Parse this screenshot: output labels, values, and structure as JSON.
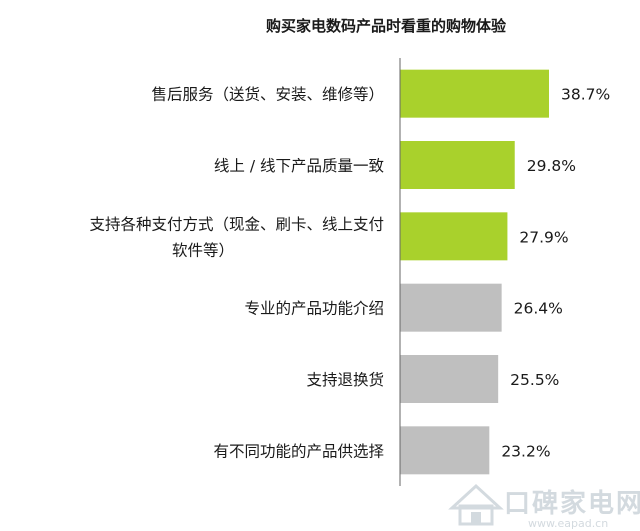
{
  "chart_data": {
    "type": "bar",
    "orientation": "horizontal",
    "title": "购买家电数码产品时看重的购物体验",
    "xlabel": "",
    "ylabel": "",
    "xlim": [
      0,
      40
    ],
    "grid": false,
    "legend": "none",
    "categories": [
      [
        "售后服务（送货、安装、维修等）"
      ],
      [
        "线上 / 线下产品质量一致"
      ],
      [
        "支持各种支付方式（现金、刷卡、线上支付",
        "软件等）"
      ],
      [
        "专业的产品功能介绍"
      ],
      [
        "支持退换货"
      ],
      [
        "有不同功能的产品供选择"
      ]
    ],
    "values": [
      38.7,
      29.8,
      27.9,
      26.4,
      25.5,
      23.2
    ],
    "value_labels": [
      "38.7%",
      "29.8%",
      "27.9%",
      "26.4%",
      "25.5%",
      "23.2%"
    ],
    "highlight_count": 3,
    "colors": {
      "highlight": "#a9d12c",
      "normal": "#bfbfbf",
      "axis": "#666666"
    }
  },
  "watermark": {
    "text": "口碑家电网",
    "url": "www.eapad.cn",
    "icon": "house-logo-icon"
  }
}
